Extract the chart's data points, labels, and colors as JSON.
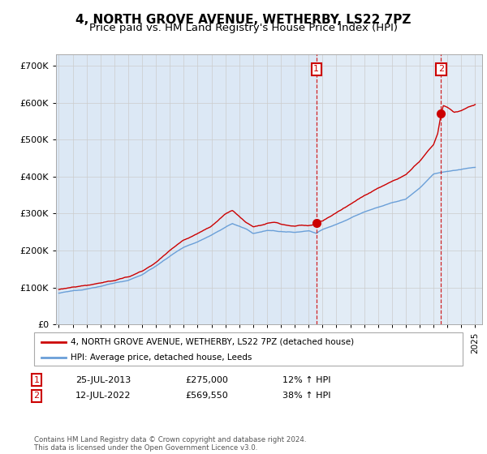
{
  "title": "4, NORTH GROVE AVENUE, WETHERBY, LS22 7PZ",
  "subtitle": "Price paid vs. HM Land Registry's House Price Index (HPI)",
  "ylabel_ticks": [
    "£0",
    "£100K",
    "£200K",
    "£300K",
    "£400K",
    "£500K",
    "£600K",
    "£700K"
  ],
  "ytick_values": [
    0,
    100000,
    200000,
    300000,
    400000,
    500000,
    600000,
    700000
  ],
  "ylim": [
    0,
    730000
  ],
  "xlim_start": 1994.8,
  "xlim_end": 2025.5,
  "sale1_date": 2013.56,
  "sale1_price": 275000,
  "sale1_label": "1",
  "sale2_date": 2022.53,
  "sale2_price": 569550,
  "sale2_label": "2",
  "hpi_color": "#6a9fd8",
  "price_color": "#cc0000",
  "annotation_box_color": "#cc0000",
  "grid_color": "#cccccc",
  "bg_color": "#dce8f5",
  "shade_color": "#dce8f5",
  "legend_label_price": "4, NORTH GROVE AVENUE, WETHERBY, LS22 7PZ (detached house)",
  "legend_label_hpi": "HPI: Average price, detached house, Leeds",
  "table_row1": [
    "1",
    "25-JUL-2013",
    "£275,000",
    "12% ↑ HPI"
  ],
  "table_row2": [
    "2",
    "12-JUL-2022",
    "£569,550",
    "38% ↑ HPI"
  ],
  "footnote": "Contains HM Land Registry data © Crown copyright and database right 2024.\nThis data is licensed under the Open Government Licence v3.0.",
  "title_fontsize": 11,
  "subtitle_fontsize": 9.5
}
